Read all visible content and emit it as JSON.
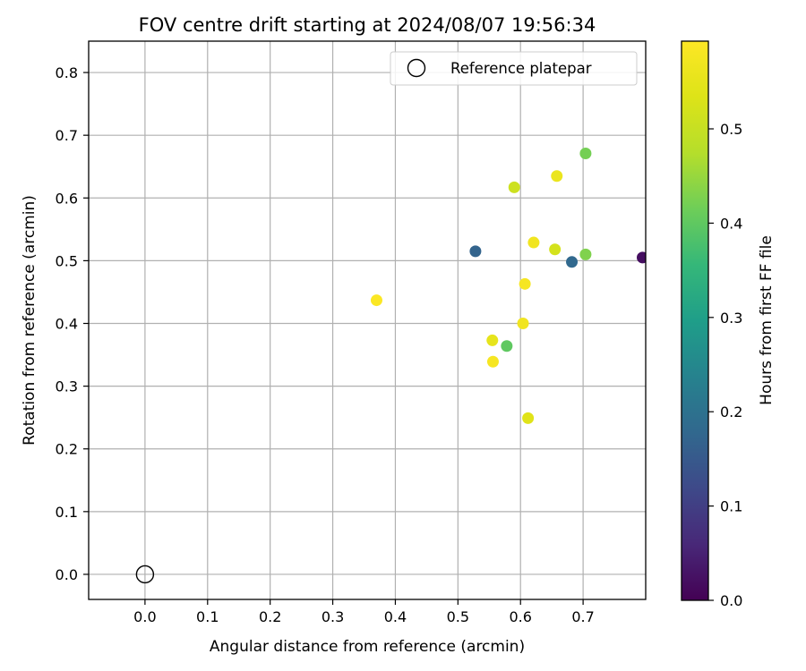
{
  "chart_data": {
    "type": "scatter",
    "title": "FOV centre drift starting at 2024/08/07 19:56:34",
    "xlabel": "Angular distance from reference (arcmin)",
    "ylabel": "Rotation from reference (arcmin)",
    "xlim": [
      -0.09,
      0.8
    ],
    "ylim": [
      -0.04,
      0.85
    ],
    "xticks": [
      0.0,
      0.1,
      0.2,
      0.3,
      0.4,
      0.5,
      0.6,
      0.7
    ],
    "xtick_labels": [
      "0.0",
      "0.1",
      "0.2",
      "0.3",
      "0.4",
      "0.5",
      "0.6",
      "0.7"
    ],
    "yticks": [
      0.0,
      0.1,
      0.2,
      0.3,
      0.4,
      0.5,
      0.6,
      0.7,
      0.8
    ],
    "ytick_labels": [
      "0.0",
      "0.1",
      "0.2",
      "0.3",
      "0.4",
      "0.5",
      "0.6",
      "0.7",
      "0.8"
    ],
    "grid": true,
    "legend": {
      "placement": "top-right",
      "entries": [
        {
          "label": "Reference platepar",
          "marker": "hollow-circle",
          "color": "#000000"
        }
      ]
    },
    "reference_point": {
      "x": 0.0,
      "y": 0.0
    },
    "colorbar": {
      "label": "Hours from first FF file",
      "colormap": "viridis",
      "range": [
        0.0,
        0.593
      ],
      "ticks": [
        0.0,
        0.1,
        0.2,
        0.3,
        0.4,
        0.5
      ],
      "tick_labels": [
        "0.0",
        "0.1",
        "0.2",
        "0.3",
        "0.4",
        "0.5"
      ]
    },
    "points": [
      {
        "x": 0.795,
        "y": 0.505,
        "hours": 0.02
      },
      {
        "x": 0.528,
        "y": 0.515,
        "hours": 0.17
      },
      {
        "x": 0.682,
        "y": 0.498,
        "hours": 0.18
      },
      {
        "x": 0.578,
        "y": 0.364,
        "hours": 0.4
      },
      {
        "x": 0.704,
        "y": 0.671,
        "hours": 0.42
      },
      {
        "x": 0.704,
        "y": 0.51,
        "hours": 0.43
      },
      {
        "x": 0.59,
        "y": 0.617,
        "hours": 0.51
      },
      {
        "x": 0.655,
        "y": 0.518,
        "hours": 0.52
      },
      {
        "x": 0.612,
        "y": 0.249,
        "hours": 0.54
      },
      {
        "x": 0.555,
        "y": 0.373,
        "hours": 0.55
      },
      {
        "x": 0.658,
        "y": 0.635,
        "hours": 0.56
      },
      {
        "x": 0.604,
        "y": 0.4,
        "hours": 0.57
      },
      {
        "x": 0.621,
        "y": 0.529,
        "hours": 0.57
      },
      {
        "x": 0.556,
        "y": 0.339,
        "hours": 0.58
      },
      {
        "x": 0.607,
        "y": 0.463,
        "hours": 0.58
      },
      {
        "x": 0.37,
        "y": 0.437,
        "hours": 0.59
      }
    ]
  }
}
